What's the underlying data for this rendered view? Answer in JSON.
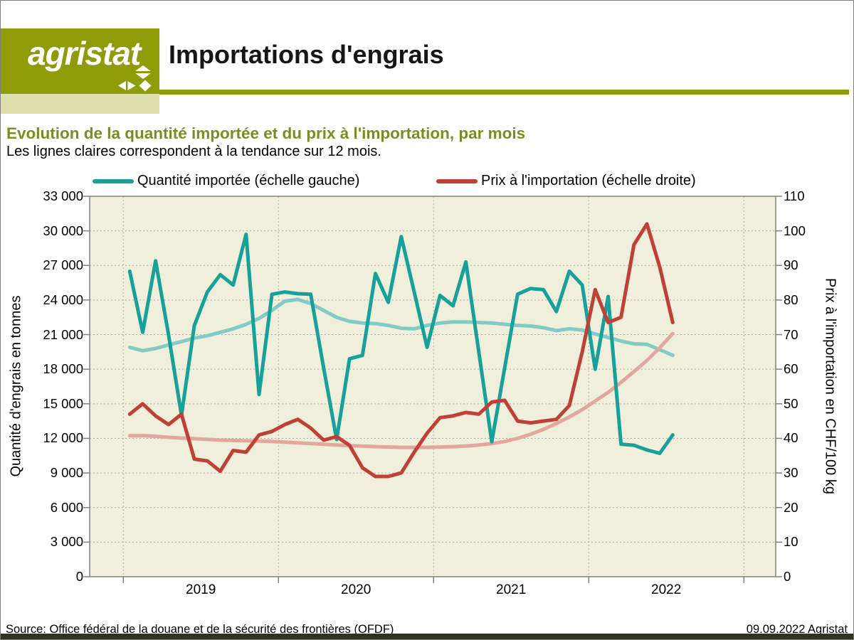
{
  "header": {
    "logo_text": "agristat",
    "title": "Importations d'engrais"
  },
  "chart_header": {
    "subtitle": "Evolution de la quantité importée et du prix à l'importation, par mois",
    "note": "Les lignes claires correspondent à la tendance sur 12 mois."
  },
  "legend": {
    "items": [
      {
        "label": "Quantité importée (échelle gauche)",
        "color": "#18A09A"
      },
      {
        "label": "Prix à l'importation (échelle droite)",
        "color": "#BE4036"
      }
    ]
  },
  "chart_data": {
    "type": "line",
    "title": "Importations d'engrais",
    "x_unit": "month",
    "months": [
      "2019-01",
      "2019-02",
      "2019-03",
      "2019-04",
      "2019-05",
      "2019-06",
      "2019-07",
      "2019-08",
      "2019-09",
      "2019-10",
      "2019-11",
      "2019-12",
      "2020-01",
      "2020-02",
      "2020-03",
      "2020-04",
      "2020-05",
      "2020-06",
      "2020-07",
      "2020-08",
      "2020-09",
      "2020-10",
      "2020-11",
      "2020-12",
      "2021-01",
      "2021-02",
      "2021-03",
      "2021-04",
      "2021-05",
      "2021-06",
      "2021-07",
      "2021-08",
      "2021-09",
      "2021-10",
      "2021-11",
      "2021-12",
      "2022-01",
      "2022-02",
      "2022-03",
      "2022-04",
      "2022-05",
      "2022-06",
      "2022-07"
    ],
    "series": [
      {
        "name": "Quantité importée",
        "axis": "left",
        "color": "#18A09A",
        "values": [
          26500,
          21200,
          27400,
          21000,
          14000,
          21800,
          24700,
          26200,
          25300,
          29700,
          15800,
          24500,
          24700,
          24550,
          24500,
          18100,
          11900,
          18900,
          19200,
          26300,
          23800,
          29500,
          24700,
          19900,
          24400,
          23500,
          27300,
          19500,
          11700,
          18100,
          24500,
          25000,
          24900,
          23000,
          26500,
          25300,
          18000,
          24300,
          11500,
          11400,
          11000,
          10700,
          12300
        ]
      },
      {
        "name": "Prix à l'importation",
        "axis": "right",
        "color": "#BE4036",
        "values": [
          47,
          50,
          46.5,
          44,
          47,
          34,
          33.5,
          30.5,
          36.5,
          36,
          41,
          42,
          44,
          45.5,
          43,
          39.5,
          40.5,
          38,
          31.5,
          29,
          29,
          30,
          36,
          41.5,
          46,
          46.5,
          47.5,
          47,
          50.5,
          51,
          45,
          44.5,
          45,
          45.5,
          49.5,
          65,
          83,
          73.5,
          75,
          96,
          102,
          89.5,
          73.5
        ]
      },
      {
        "name": "Quantité importée – tendance sur 12 mois",
        "axis": "left",
        "color": "#82CBC6",
        "values": [
          19900,
          19600,
          19800,
          20100,
          20400,
          20700,
          20900,
          21200,
          21500,
          21900,
          22400,
          23100,
          23900,
          24050,
          23700,
          23100,
          22500,
          22150,
          22000,
          21950,
          21800,
          21550,
          21500,
          21800,
          22000,
          22100,
          22100,
          22050,
          22000,
          21900,
          21800,
          21750,
          21600,
          21350,
          21500,
          21400,
          21050,
          20750,
          20450,
          20200,
          20150,
          19700,
          19200
        ]
      },
      {
        "name": "Prix à l'importation – tendance sur 12 mois",
        "axis": "right",
        "color": "#E2A79F",
        "values": [
          40.8,
          40.8,
          40.6,
          40.3,
          40.1,
          39.9,
          39.7,
          39.5,
          39.4,
          39.3,
          39.2,
          39.1,
          38.9,
          38.7,
          38.5,
          38.3,
          38.1,
          37.9,
          37.8,
          37.6,
          37.5,
          37.4,
          37.4,
          37.4,
          37.5,
          37.6,
          37.8,
          38.1,
          38.5,
          39.1,
          40.0,
          41.2,
          42.6,
          44.3,
          46.2,
          48.3,
          50.8,
          53.3,
          56.2,
          59.3,
          62.5,
          66.2,
          70.3
        ]
      }
    ],
    "y_left": {
      "label": "Quantité d'engrais en tonnes",
      "min": 0,
      "max": 33000,
      "step": 3000,
      "tick_labels": [
        "0",
        "3 000",
        "6 000",
        "9 000",
        "12 000",
        "15 000",
        "18 000",
        "21 000",
        "24 000",
        "27 000",
        "30 000",
        "33 000"
      ]
    },
    "y_right": {
      "label": "Prix à l'importation en CHF/100 kg",
      "min": 0,
      "max": 110,
      "step": 10,
      "tick_labels": [
        "0",
        "10",
        "20",
        "30",
        "40",
        "50",
        "60",
        "70",
        "80",
        "90",
        "100",
        "110"
      ]
    },
    "x_axis": {
      "year_labels": [
        "2019",
        "2020",
        "2021",
        "2022"
      ]
    },
    "grid": true,
    "legend_position": "top"
  },
  "footer": {
    "source": "Source: Office fédéral de la douane et de la sécurité des frontières (OFDF)",
    "date_label": "09.09.2022 Agristat"
  },
  "colors": {
    "olive": "#8F9C08",
    "olive_light": "#DCDFAB",
    "subtitle_olive": "#7C8C21",
    "plot_bg": "#F0EFDB",
    "axis_gray": "#808080",
    "grid_gray": "#A9A9A9",
    "footer_bar": "#33331D"
  }
}
